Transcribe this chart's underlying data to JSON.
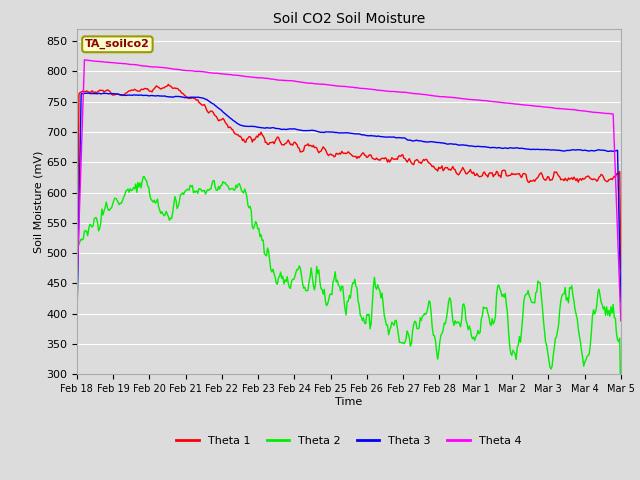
{
  "title": "Soil CO2 Soil Moisture",
  "xlabel": "Time",
  "ylabel": "Soil Moisture (mV)",
  "ylim": [
    300,
    870
  ],
  "yticks": [
    300,
    350,
    400,
    450,
    500,
    550,
    600,
    650,
    700,
    750,
    800,
    850
  ],
  "annotation": "TA_soilco2",
  "bg_color": "#dcdcdc",
  "plot_bg": "#dcdcdc",
  "legend_entries": [
    "Theta 1",
    "Theta 2",
    "Theta 3",
    "Theta 4"
  ],
  "colors": {
    "theta1": "#ff0000",
    "theta2": "#00ee00",
    "theta3": "#0000ff",
    "theta4": "#ff00ff"
  },
  "xtick_labels": [
    "Feb 18",
    "Feb 19",
    "Feb 20",
    "Feb 21",
    "Feb 22",
    "Feb 23",
    "Feb 24",
    "Feb 25",
    "Feb 26",
    "Feb 27",
    "Feb 28",
    "Mar 1",
    "Mar 2",
    "Mar 3",
    "Mar 4",
    "Mar 5"
  ],
  "num_points": 500
}
